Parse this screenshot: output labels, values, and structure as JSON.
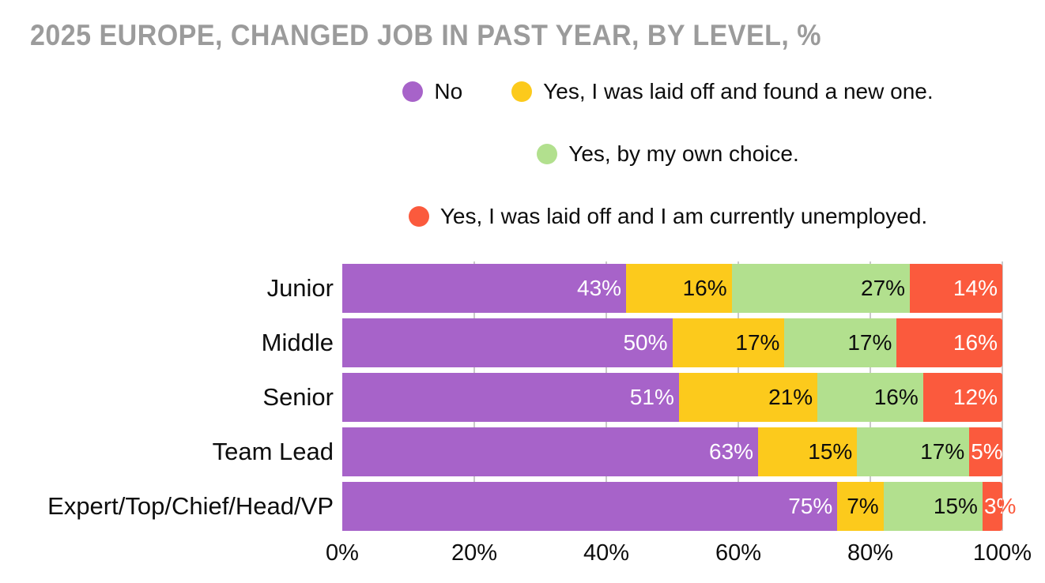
{
  "title": "2025 EUROPE, CHANGED JOB IN PAST YEAR, BY LEVEL, %",
  "colors": {
    "title_text": "#9b9b9b",
    "body_text": "#0d0d0d",
    "gridline": "#c9c9c9",
    "background": "#ffffff"
  },
  "chart_data": {
    "type": "bar",
    "orientation": "horizontal",
    "stacked": true,
    "title": "2025 EUROPE, CHANGED JOB IN PAST YEAR, BY LEVEL, %",
    "categories": [
      "Junior",
      "Middle",
      "Senior",
      "Team Lead",
      "Expert/Top/Chief/Head/VP"
    ],
    "series": [
      {
        "name": "No",
        "color": "#a763c9",
        "label_color": "#ffffff",
        "values": [
          43,
          50,
          51,
          63,
          75
        ]
      },
      {
        "name": "Yes, I was laid off and found a new one.",
        "color": "#fcca1c",
        "label_color": "#0d0d0d",
        "values": [
          16,
          17,
          21,
          15,
          7
        ]
      },
      {
        "name": "Yes, by my own choice.",
        "color": "#b2e08e",
        "label_color": "#0d0d0d",
        "values": [
          27,
          17,
          16,
          17,
          15
        ]
      },
      {
        "name": "Yes, I was laid off and I am currently unemployed.",
        "color": "#fb5a3d",
        "label_color": "#ffffff",
        "values": [
          14,
          16,
          12,
          5,
          3
        ]
      }
    ],
    "value_suffix": "%",
    "x_ticks": [
      "0%",
      "20%",
      "40%",
      "60%",
      "80%",
      "100%"
    ],
    "xlim": [
      0,
      100
    ],
    "grid": true,
    "legend_position": "top-center",
    "legend_rows": [
      [
        0,
        1
      ],
      [
        2
      ],
      [
        3
      ]
    ]
  }
}
